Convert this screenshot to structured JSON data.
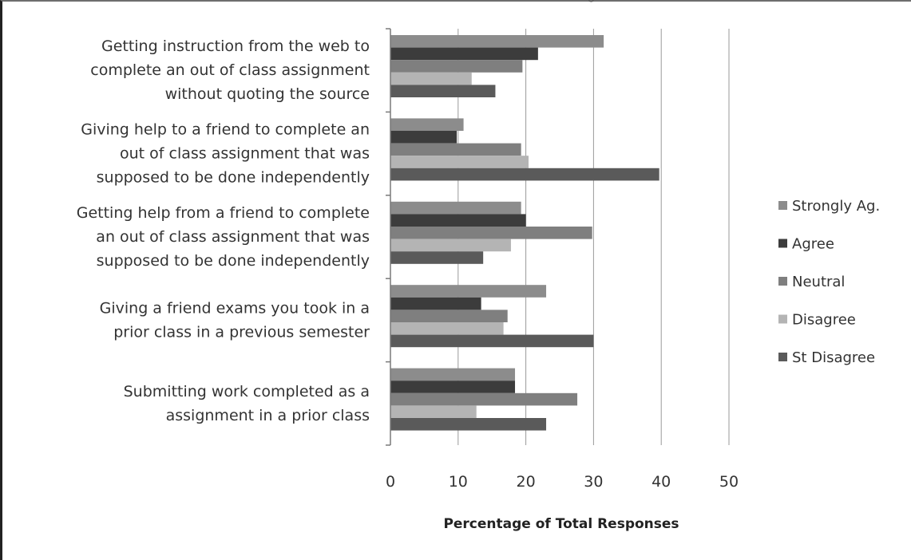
{
  "chart_data": {
    "type": "bar",
    "orientation": "horizontal",
    "title": "",
    "title_partial_visible": "g",
    "xlabel": "Percentage of Total Responses",
    "ylabel": "",
    "xlim": [
      0,
      50
    ],
    "xticks": [
      0,
      10,
      20,
      30,
      40,
      50
    ],
    "grid": "vertical-major",
    "legend_position": "right",
    "categories": [
      {
        "lines": [
          "Getting instruction from  the web to",
          "complete an out of class assignment",
          "without quoting the source"
        ]
      },
      {
        "lines": [
          "Giving help to a friend to complete an",
          "out of class assignment that was",
          "supposed to be done independently"
        ]
      },
      {
        "lines": [
          "Getting help from a friend to complete",
          "an out of class assignment that was",
          "supposed to be done independently"
        ]
      },
      {
        "lines": [
          "Giving a friend exams you took in a",
          "prior class in a previous semester"
        ]
      },
      {
        "lines": [
          "Submitting work completed as a",
          "assignment in a prior class"
        ]
      }
    ],
    "series": [
      {
        "name": "Strongly Ag.",
        "color": "#8c8c8c",
        "values": [
          31.5,
          10.8,
          19.3,
          23.0,
          18.4
        ]
      },
      {
        "name": "Agree",
        "color": "#3c3c3c",
        "values": [
          21.8,
          9.8,
          20.0,
          13.4,
          18.4
        ]
      },
      {
        "name": "Neutral",
        "color": "#7f7f7f",
        "values": [
          19.5,
          19.3,
          29.8,
          17.3,
          27.6
        ]
      },
      {
        "name": "Disagree",
        "color": "#b4b4b4",
        "values": [
          12.0,
          20.4,
          17.8,
          16.7,
          12.7
        ]
      },
      {
        "name": "St Disagree",
        "color": "#5a5a5a",
        "values": [
          15.5,
          39.7,
          13.7,
          30.0,
          23.0
        ]
      }
    ]
  }
}
